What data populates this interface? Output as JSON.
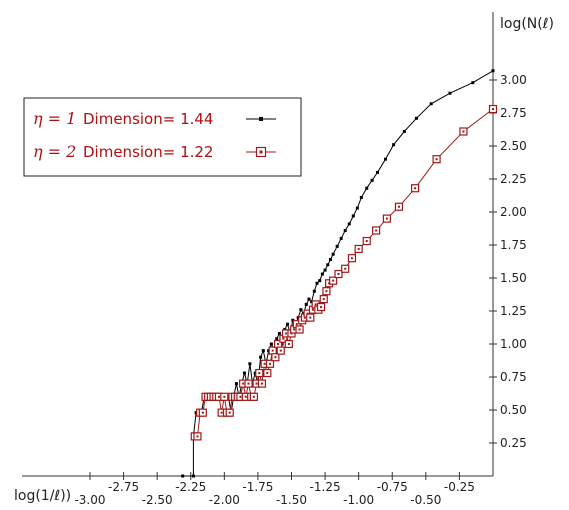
{
  "chart_data": {
    "type": "line",
    "xlabel": "log(1/ℓ))",
    "ylabel": "log(N(ℓ)",
    "xlim": [
      -3.0,
      0.0
    ],
    "ylim": [
      0.0,
      3.25
    ],
    "x_ticks_upper": [
      "-2.75",
      "-2.25",
      "-1.75",
      "-1.25",
      "-0.75",
      "-0.25"
    ],
    "x_ticks_upper_values": [
      -2.75,
      -2.25,
      -1.75,
      -1.25,
      -0.75,
      -0.25
    ],
    "x_ticks_lower": [
      "-3.00",
      "-2.50",
      "-2.00",
      "-1.50",
      "-1.00",
      "-0.50"
    ],
    "x_ticks_lower_values": [
      -3.0,
      -2.5,
      -2.0,
      -1.5,
      -1.0,
      -0.5
    ],
    "y_ticks": [
      "0.25",
      "0.50",
      "0.75",
      "1.00",
      "1.25",
      "1.50",
      "1.75",
      "2.00",
      "2.25",
      "2.50",
      "2.75",
      "3.00"
    ],
    "y_ticks_values": [
      0.25,
      0.5,
      0.75,
      1.0,
      1.25,
      1.5,
      1.75,
      2.0,
      2.25,
      2.5,
      2.75,
      3.0
    ],
    "legend": {
      "placement": "top-left"
    },
    "series": [
      {
        "eta_label": "η = 1",
        "name": "Dimension= 1.44",
        "color": "#000000",
        "marker": "dot",
        "x": [
          -2.31,
          -2.23,
          -2.23,
          -2.21,
          -2.19,
          -2.17,
          -2.15,
          -2.13,
          -2.11,
          -2.09,
          -2.07,
          -2.05,
          -2.03,
          -2.01,
          -1.99,
          -1.97,
          -1.95,
          -1.93,
          -1.91,
          -1.89,
          -1.87,
          -1.85,
          -1.83,
          -1.81,
          -1.79,
          -1.77,
          -1.75,
          -1.73,
          -1.71,
          -1.69,
          -1.67,
          -1.65,
          -1.63,
          -1.61,
          -1.59,
          -1.57,
          -1.55,
          -1.53,
          -1.51,
          -1.49,
          -1.47,
          -1.45,
          -1.43,
          -1.41,
          -1.39,
          -1.37,
          -1.35,
          -1.33,
          -1.31,
          -1.29,
          -1.27,
          -1.25,
          -1.23,
          -1.21,
          -1.19,
          -1.16,
          -1.13,
          -1.1,
          -1.07,
          -1.04,
          -1.01,
          -0.98,
          -0.94,
          -0.9,
          -0.86,
          -0.8,
          -0.74,
          -0.66,
          -0.57,
          -0.46,
          -0.32,
          -0.15,
          0.0
        ],
        "y": [
          0.0,
          0.0,
          0.3,
          0.48,
          0.48,
          0.48,
          0.6,
          0.6,
          0.6,
          0.6,
          0.6,
          0.6,
          0.6,
          0.6,
          0.6,
          0.6,
          0.48,
          0.6,
          0.7,
          0.6,
          0.7,
          0.78,
          0.7,
          0.85,
          0.7,
          0.78,
          0.7,
          0.9,
          0.95,
          0.85,
          0.95,
          1.0,
          0.95,
          1.04,
          1.08,
          1.0,
          1.11,
          1.15,
          1.08,
          1.18,
          1.15,
          1.2,
          1.26,
          1.23,
          1.3,
          1.34,
          1.32,
          1.4,
          1.46,
          1.48,
          1.53,
          1.56,
          1.6,
          1.64,
          1.68,
          1.74,
          1.8,
          1.86,
          1.91,
          1.97,
          2.03,
          2.11,
          2.18,
          2.24,
          2.3,
          2.4,
          2.51,
          2.61,
          2.71,
          2.82,
          2.9,
          2.98,
          3.07
        ]
      },
      {
        "eta_label": "η = 2",
        "name": "Dimension= 1.22",
        "color": "#a01818",
        "marker": "square",
        "x": [
          -2.22,
          -2.2,
          -2.18,
          -2.16,
          -2.14,
          -2.12,
          -2.1,
          -2.08,
          -2.06,
          -2.04,
          -2.02,
          -2.0,
          -1.98,
          -1.96,
          -1.94,
          -1.92,
          -1.9,
          -1.88,
          -1.86,
          -1.84,
          -1.82,
          -1.8,
          -1.78,
          -1.76,
          -1.74,
          -1.72,
          -1.7,
          -1.68,
          -1.66,
          -1.64,
          -1.62,
          -1.6,
          -1.58,
          -1.56,
          -1.54,
          -1.52,
          -1.5,
          -1.48,
          -1.46,
          -1.44,
          -1.42,
          -1.4,
          -1.38,
          -1.36,
          -1.34,
          -1.32,
          -1.3,
          -1.28,
          -1.26,
          -1.24,
          -1.22,
          -1.19,
          -1.15,
          -1.1,
          -1.05,
          -1.0,
          -0.94,
          -0.87,
          -0.79,
          -0.7,
          -0.58,
          -0.42,
          -0.22,
          0.0
        ],
        "y": [
          0.3,
          0.3,
          0.48,
          0.48,
          0.6,
          0.6,
          0.6,
          0.6,
          0.6,
          0.6,
          0.48,
          0.6,
          0.48,
          0.48,
          0.6,
          0.6,
          0.6,
          0.6,
          0.7,
          0.6,
          0.7,
          0.6,
          0.6,
          0.7,
          0.78,
          0.7,
          0.85,
          0.78,
          0.85,
          0.95,
          0.9,
          1.0,
          0.95,
          1.04,
          1.08,
          1.0,
          1.08,
          1.11,
          1.15,
          1.11,
          1.18,
          1.2,
          1.23,
          1.2,
          1.26,
          1.3,
          1.26,
          1.28,
          1.34,
          1.4,
          1.46,
          1.48,
          1.53,
          1.57,
          1.65,
          1.72,
          1.78,
          1.86,
          1.95,
          2.04,
          2.18,
          2.4,
          2.61,
          2.78
        ]
      }
    ]
  }
}
